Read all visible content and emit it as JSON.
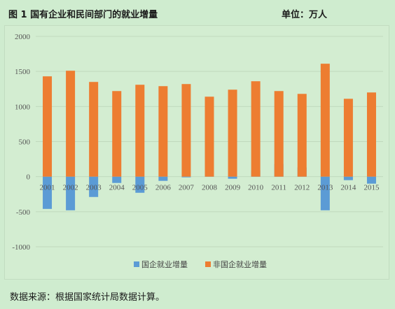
{
  "header": {
    "title": "图 1   国有企业和民间部门的就业增量",
    "unit": "单位：万人"
  },
  "footer": {
    "source": "数据来源：根据国家统计局数据计算。"
  },
  "colors": {
    "soe": "#5b9bd5",
    "non_soe": "#ed7d31",
    "grid": "#c0d9bd",
    "axis_text": "#555555"
  },
  "chart_data": {
    "type": "bar",
    "stacked": true,
    "categories": [
      "2001",
      "2002",
      "2003",
      "2004",
      "2005",
      "2006",
      "2007",
      "2008",
      "2009",
      "2010",
      "2011",
      "2012",
      "2013",
      "2014",
      "2015"
    ],
    "series": [
      {
        "name": "国企就业增量",
        "color": "#5b9bd5",
        "values": [
          -460,
          -480,
          -290,
          -90,
          -230,
          -60,
          -10,
          20,
          -30,
          90,
          180,
          130,
          -480,
          -50,
          -100
        ]
      },
      {
        "name": "非国企就业增量",
        "color": "#ed7d31",
        "values": [
          1430,
          1510,
          1350,
          1220,
          1310,
          1290,
          1320,
          1140,
          1240,
          1360,
          1220,
          1180,
          1610,
          1110,
          1200
        ]
      }
    ],
    "ylim": [
      -1000,
      2000
    ],
    "yticks": [
      -1000,
      -500,
      0,
      500,
      1000,
      1500,
      2000
    ],
    "grid": true,
    "legend": "bottom"
  }
}
